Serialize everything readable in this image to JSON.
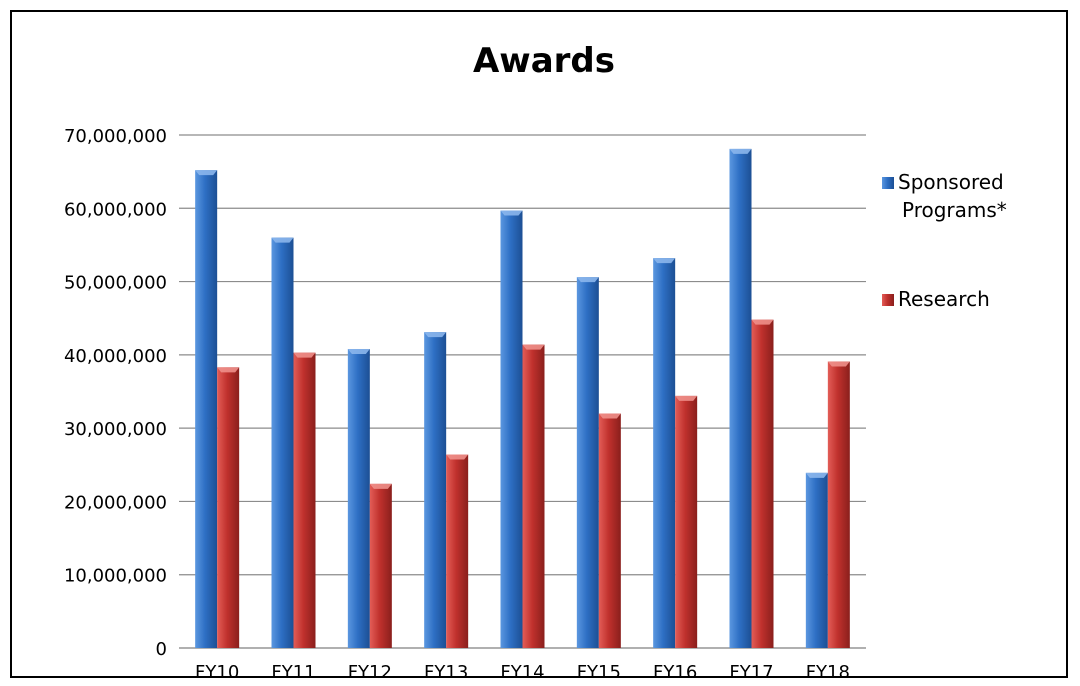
{
  "chart_data": {
    "type": "bar",
    "title": "Awards",
    "categories": [
      "FY10",
      "FY11",
      "FY12",
      "FY13",
      "FY14",
      "FY15",
      "FY16",
      "FY17",
      "FY18"
    ],
    "series": [
      {
        "name": "Sponsored Programs*",
        "name_lines": [
          "Sponsored",
          "Programs*"
        ],
        "color": "#2e6fc4",
        "values": [
          65200000,
          56000000,
          40800000,
          43100000,
          59700000,
          50600000,
          53200000,
          68100000,
          23900000
        ]
      },
      {
        "name": "Research",
        "name_lines": [
          "Research"
        ],
        "color": "#c0312d",
        "values": [
          38300000,
          40300000,
          22400000,
          26400000,
          41400000,
          32000000,
          34400000,
          44800000,
          39100000
        ]
      }
    ],
    "ylim": [
      0,
      70000000
    ],
    "yticks": [
      "0",
      "10,000,000",
      "20,000,000",
      "30,000,000",
      "40,000,000",
      "50,000,000",
      "60,000,000",
      "70,000,000"
    ],
    "grid": true,
    "legend_position": "right"
  }
}
